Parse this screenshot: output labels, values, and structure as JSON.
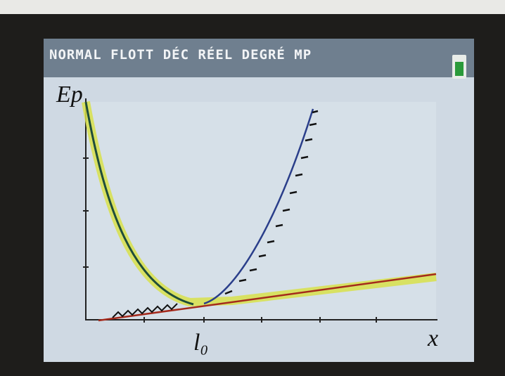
{
  "status_bar": {
    "modes": "NORMAL FLOTT DÉC RÉEL DEGRÉ MP"
  },
  "labels": {
    "y_axis": "Ep",
    "marker": "l₀",
    "x_axis": "x"
  }
}
